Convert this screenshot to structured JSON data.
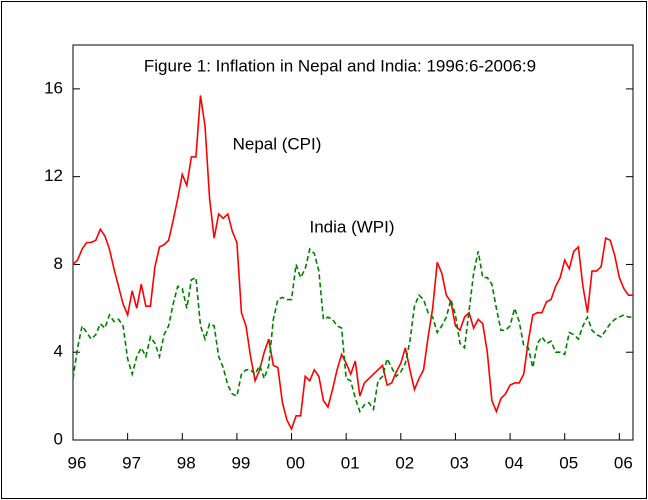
{
  "chart_data": {
    "type": "line",
    "title": "Figure 1: Inflation in Nepal and India: 1996:6-2006:9",
    "categories": [
      "96",
      null,
      null,
      null,
      null,
      null,
      null,
      null,
      null,
      null,
      null,
      null,
      "97",
      null,
      null,
      null,
      null,
      null,
      null,
      null,
      null,
      null,
      null,
      null,
      "98",
      null,
      null,
      null,
      null,
      null,
      null,
      null,
      null,
      null,
      null,
      null,
      "99",
      null,
      null,
      null,
      null,
      null,
      null,
      null,
      null,
      null,
      null,
      null,
      "00",
      null,
      null,
      null,
      null,
      null,
      null,
      null,
      null,
      null,
      null,
      null,
      "01",
      null,
      null,
      null,
      null,
      null,
      null,
      null,
      null,
      null,
      null,
      null,
      "02",
      null,
      null,
      null,
      null,
      null,
      null,
      null,
      null,
      null,
      null,
      null,
      "03",
      null,
      null,
      null,
      null,
      null,
      null,
      null,
      null,
      null,
      null,
      null,
      "04",
      null,
      null,
      null,
      null,
      null,
      null,
      null,
      null,
      null,
      null,
      null,
      "05",
      null,
      null,
      null,
      null,
      null,
      null,
      null,
      null,
      null,
      null,
      null,
      "06",
      null,
      null,
      null
    ],
    "series": [
      {
        "name": "Nepal (CPI)",
        "color": "#ff0000",
        "dashed": false,
        "values": [
          8.0,
          8.2,
          8.7,
          9.0,
          9.0,
          9.1,
          9.6,
          9.3,
          8.7,
          7.8,
          7.0,
          6.2,
          5.7,
          6.8,
          6.0,
          7.1,
          6.1,
          6.1,
          7.9,
          8.8,
          8.9,
          9.1,
          10.0,
          11.0,
          12.1,
          11.6,
          12.9,
          12.9,
          15.7,
          14.3,
          11.0,
          9.2,
          10.3,
          10.1,
          10.3,
          9.5,
          9.0,
          5.8,
          5.2,
          3.8,
          2.7,
          3.2,
          4.0,
          4.6,
          3.4,
          3.3,
          1.7,
          0.9,
          0.5,
          1.1,
          1.1,
          2.9,
          2.7,
          3.2,
          2.9,
          1.8,
          1.5,
          2.3,
          3.2,
          3.9,
          3.5,
          3.0,
          3.6,
          2.0,
          2.6,
          2.8,
          3.0,
          3.2,
          3.4,
          2.5,
          2.6,
          3.1,
          3.5,
          4.2,
          3.2,
          2.3,
          2.8,
          3.2,
          4.7,
          6.0,
          8.1,
          7.6,
          6.6,
          6.3,
          5.2,
          5.0,
          5.6,
          5.8,
          5.1,
          5.5,
          5.3,
          4.0,
          1.8,
          1.3,
          1.9,
          2.1,
          2.5,
          2.6,
          2.6,
          3.0,
          4.5,
          5.7,
          5.8,
          5.8,
          6.3,
          6.4,
          7.0,
          7.4,
          8.2,
          7.8,
          8.6,
          8.8,
          7.0,
          5.8,
          7.7,
          7.7,
          7.9,
          9.2,
          9.1,
          8.4,
          7.4,
          6.9,
          6.6,
          6.6
        ]
      },
      {
        "name": "India (WPI)",
        "color": "#008000",
        "dashed": true,
        "values": [
          2.8,
          4.2,
          5.2,
          4.9,
          4.6,
          4.8,
          5.3,
          5.1,
          5.7,
          5.4,
          5.5,
          5.2,
          3.7,
          3.0,
          3.8,
          4.2,
          3.8,
          4.7,
          4.4,
          3.8,
          4.8,
          5.2,
          6.2,
          7.0,
          6.9,
          6.0,
          7.3,
          7.4,
          5.2,
          4.6,
          5.3,
          5.2,
          3.8,
          3.3,
          2.5,
          2.1,
          2.0,
          3.0,
          3.2,
          3.2,
          3.0,
          3.4,
          2.8,
          3.4,
          5.5,
          6.4,
          6.5,
          6.4,
          6.4,
          8.0,
          7.4,
          7.8,
          8.7,
          8.5,
          7.7,
          5.5,
          5.6,
          5.5,
          5.2,
          5.1,
          2.8,
          2.7,
          1.9,
          1.3,
          1.6,
          1.7,
          1.4,
          2.7,
          2.9,
          3.7,
          3.3,
          2.9,
          3.1,
          3.5,
          4.5,
          6.1,
          6.6,
          6.4,
          5.8,
          5.6,
          4.9,
          5.2,
          5.6,
          6.4,
          5.7,
          4.4,
          4.2,
          5.9,
          7.6,
          8.6,
          7.4,
          7.4,
          7.1,
          6.0,
          5.0,
          5.0,
          5.2,
          6.0,
          5.4,
          4.3,
          4.2,
          3.3,
          4.4,
          4.7,
          4.4,
          4.5,
          4.0,
          4.0,
          3.9,
          4.9,
          4.8,
          4.6,
          5.2,
          5.6,
          5.0,
          4.8,
          4.7,
          5.0,
          5.3,
          5.5,
          5.6,
          5.7,
          5.6,
          5.6
        ]
      }
    ],
    "ylim": [
      0,
      18
    ],
    "yticks": [
      0,
      4,
      8,
      12,
      16
    ],
    "grid": false
  }
}
